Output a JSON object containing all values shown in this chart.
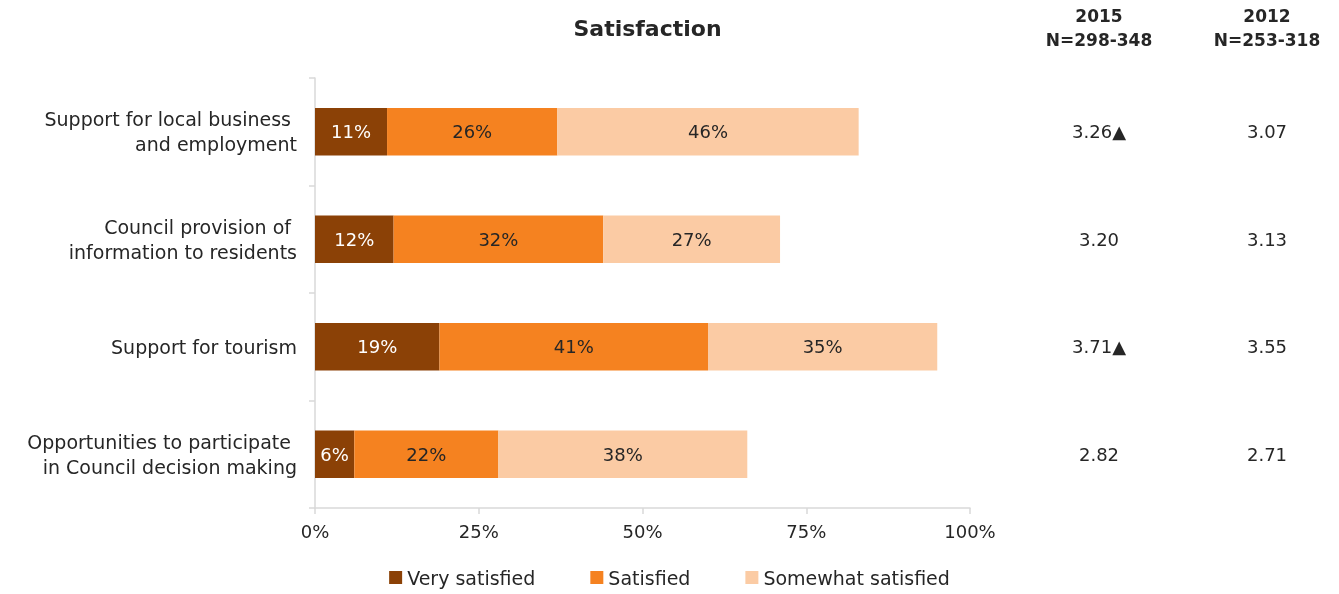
{
  "chart_data": {
    "type": "bar",
    "orientation": "horizontal",
    "stacked": true,
    "title": "Satisfaction",
    "categories": [
      "Support for local business and employment",
      "Council provision of information to residents",
      "Support for tourism",
      "Opportunities to participate in Council decision making"
    ],
    "series": [
      {
        "name": "Very satisfied",
        "color": "#8b4106",
        "values": [
          11,
          12,
          19,
          6
        ],
        "value_labels": [
          "11%",
          "12%",
          "19%",
          "6%"
        ]
      },
      {
        "name": "Satisfied",
        "color": "#f58220",
        "values": [
          26,
          32,
          41,
          22
        ],
        "value_labels": [
          "26%",
          "32%",
          "41%",
          "22%"
        ]
      },
      {
        "name": "Somewhat satisfied",
        "color": "#fbcba4",
        "values": [
          46,
          27,
          35,
          38
        ],
        "value_labels": [
          "46%",
          "27%",
          "35%",
          "38%"
        ]
      }
    ],
    "xlim": [
      0,
      100
    ],
    "xticks": [
      {
        "value": 0,
        "label": "0%"
      },
      {
        "value": 25,
        "label": "25%"
      },
      {
        "value": 50,
        "label": "50%"
      },
      {
        "value": 75,
        "label": "75%"
      },
      {
        "value": 100,
        "label": "100%"
      }
    ],
    "legend": "bottom",
    "annotations": [
      "2015\nN=298-348",
      "2012\nN=253-318",
      "3.26▲",
      "3.07",
      "3.20",
      "3.13",
      "3.71▲",
      "3.55",
      "2.82",
      "2.71"
    ]
  }
}
